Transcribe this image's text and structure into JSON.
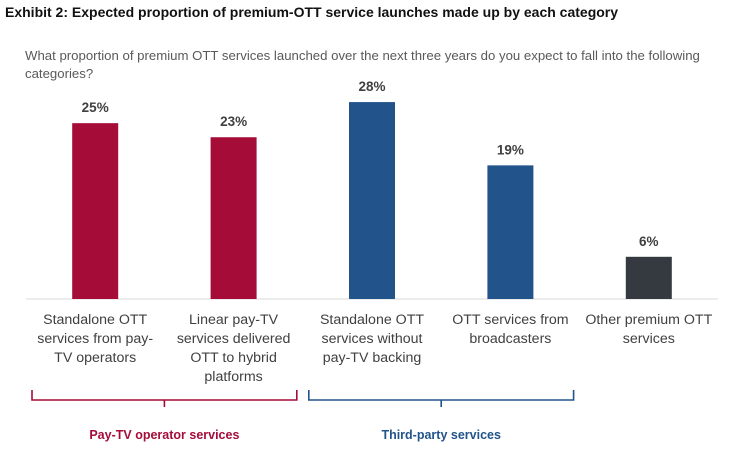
{
  "header": {
    "exhibit_title": "Exhibit 2: Expected proportion of premium-OTT service launches made up by each category",
    "question": "What proportion of premium OTT services launched over the next three years do you expect to fall into the following categories?"
  },
  "colors": {
    "pay_tv": "#a50d38",
    "third_party": "#22548b",
    "other": "#343a40",
    "axis": "#d9d9d9",
    "value_label": "#404040"
  },
  "chart_data": {
    "type": "bar",
    "categories": [
      "Standalone OTT services from pay-TV operators",
      "Linear pay-TV services delivered OTT to hybrid platforms",
      "Standalone OTT services without pay-TV backing",
      "OTT services from broadcasters",
      "Other premium OTT services"
    ],
    "values": [
      25,
      23,
      28,
      19,
      6
    ],
    "value_labels": [
      "25%",
      "23%",
      "28%",
      "19%",
      "6%"
    ],
    "bar_colors": [
      "#a50d38",
      "#a50d38",
      "#22548b",
      "#22548b",
      "#343a40"
    ],
    "ylim": [
      0,
      30
    ],
    "groups": [
      {
        "name": "Pay-TV operator services",
        "categories": [
          0,
          1
        ],
        "color": "#a50d38"
      },
      {
        "name": "Third-party services",
        "categories": [
          2,
          3
        ],
        "color": "#22548b"
      }
    ]
  },
  "category_label_lines": [
    [
      "Standalone OTT",
      "services from pay-",
      "TV operators"
    ],
    [
      "Linear pay-TV",
      "services delivered",
      "OTT to hybrid",
      "platforms"
    ],
    [
      "Standalone OTT",
      "services without",
      "pay-TV backing"
    ],
    [
      "OTT services from",
      "broadcasters"
    ],
    [
      "Other premium OTT",
      "services"
    ]
  ]
}
